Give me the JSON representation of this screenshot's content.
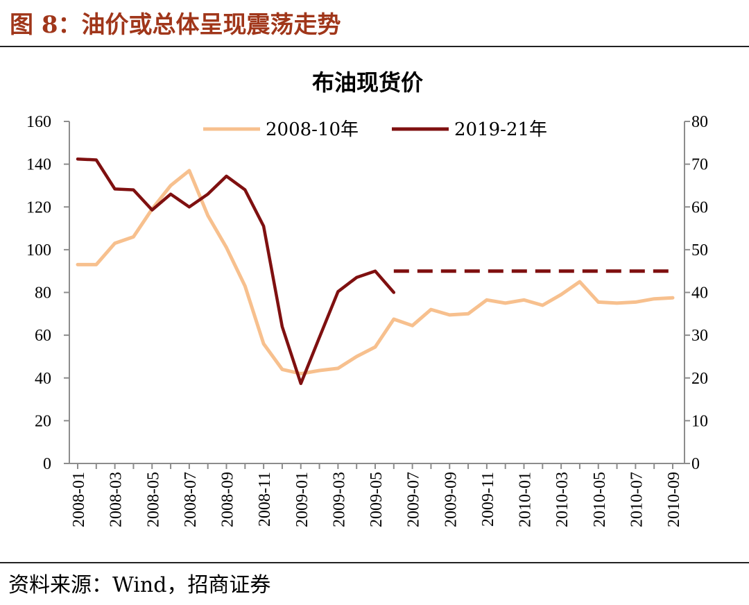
{
  "figure": {
    "title": "图 8：油价或总体呈现震荡走势",
    "source": "资料来源：Wind，招商证券"
  },
  "chart_data": {
    "type": "line",
    "title": "布油现货价",
    "x_categories": [
      "2008-01",
      "2008-02",
      "2008-03",
      "2008-04",
      "2008-05",
      "2008-06",
      "2008-07",
      "2008-08",
      "2008-09",
      "2008-10",
      "2008-11",
      "2008-12",
      "2009-01",
      "2009-02",
      "2009-03",
      "2009-04",
      "2009-05",
      "2009-06",
      "2009-07",
      "2009-08",
      "2009-09",
      "2009-10",
      "2009-11",
      "2009-12",
      "2010-01",
      "2010-02",
      "2010-03",
      "2010-04",
      "2010-05",
      "2010-06",
      "2010-07",
      "2010-08",
      "2010-09"
    ],
    "x_tick_labels": [
      "2008-01",
      "2008-03",
      "2008-05",
      "2008-07",
      "2008-09",
      "2008-11",
      "2009-01",
      "2009-03",
      "2009-05",
      "2009-07",
      "2009-09",
      "2009-11",
      "2010-01",
      "2010-03",
      "2010-05",
      "2010-07",
      "2010-09"
    ],
    "left_axis": {
      "ylim": [
        0,
        160
      ],
      "ticks": [
        "0",
        "20",
        "40",
        "60",
        "80",
        "100",
        "120",
        "140",
        "160"
      ]
    },
    "right_axis": {
      "ylim": [
        0,
        80
      ],
      "ticks": [
        "0",
        "10",
        "20",
        "30",
        "40",
        "50",
        "60",
        "70",
        "80"
      ]
    },
    "series": [
      {
        "name": "2008-10年",
        "axis": "left",
        "color": "#f7c08e",
        "values": [
          93,
          93,
          103,
          106,
          119,
          130,
          137,
          116,
          101,
          83,
          56,
          44,
          42,
          43.5,
          44.5,
          50,
          54.5,
          67.5,
          64.5,
          72,
          69.5,
          70,
          76.5,
          75,
          76.5,
          74,
          79,
          85,
          75.5,
          75,
          75.5,
          77,
          77.5
        ]
      },
      {
        "name": "2019-21年",
        "axis": "right",
        "color": "#7f1010",
        "values": [
          71.2,
          71.0,
          64.2,
          64.0,
          59.3,
          63.0,
          60.0,
          63.0,
          67.2,
          64.0,
          55.5,
          32.0,
          18.7,
          29.5,
          40.2,
          43.5,
          45.0,
          40.0
        ]
      }
    ],
    "forecast": {
      "axis": "right",
      "value": 45,
      "from": "2009-06",
      "to": "2010-09",
      "style": "dashed",
      "color": "#7f1010"
    },
    "legend": "top-center",
    "grid": false
  }
}
